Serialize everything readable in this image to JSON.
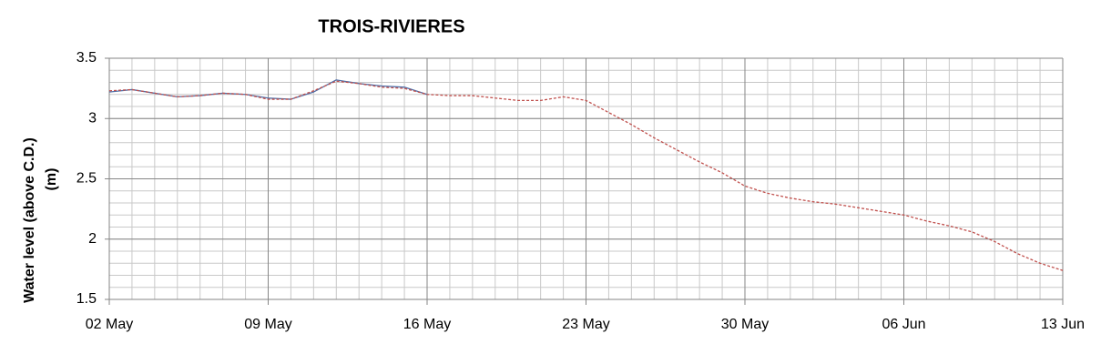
{
  "chart_data": {
    "type": "line",
    "title": "TROIS-RIVIERES",
    "y_label": [
      "Water level (above C.D.)",
      "(m)"
    ],
    "x": [
      0,
      1,
      2,
      3,
      4,
      5,
      6,
      7,
      8,
      9,
      10,
      11,
      12,
      13,
      14,
      15,
      16,
      17,
      18,
      19,
      20,
      21,
      22,
      23,
      24,
      25,
      26,
      27,
      28,
      29,
      30,
      31,
      32,
      33,
      34,
      35,
      36,
      37,
      38,
      39,
      40,
      41,
      42
    ],
    "series": [
      {
        "color": "#4f6fa8",
        "dash": false,
        "values": [
          3.22,
          3.24,
          3.21,
          3.18,
          3.19,
          3.21,
          3.2,
          3.17,
          3.16,
          3.22,
          3.32,
          3.29,
          3.27,
          3.26,
          3.2,
          null,
          null,
          null,
          null,
          null,
          null,
          null,
          null,
          null,
          null,
          null,
          null,
          null,
          null,
          null,
          null,
          null,
          null,
          null,
          null,
          null,
          null,
          null,
          null,
          null,
          null,
          null,
          null
        ]
      },
      {
        "color": "#c0504d",
        "dash": true,
        "values": [
          3.23,
          3.24,
          3.21,
          3.18,
          3.19,
          3.21,
          3.2,
          3.16,
          3.16,
          3.23,
          3.31,
          3.29,
          3.26,
          3.25,
          3.2,
          3.19,
          3.19,
          3.17,
          3.15,
          3.15,
          3.18,
          3.15,
          3.05,
          2.95,
          2.84,
          2.74,
          2.64,
          2.55,
          2.44,
          2.38,
          2.34,
          2.31,
          2.29,
          2.26,
          2.23,
          2.2,
          2.15,
          2.11,
          2.06,
          1.98,
          1.88,
          1.8,
          1.74
        ]
      }
    ],
    "xlim": [
      0,
      42
    ],
    "xticks": [
      {
        "value": 0,
        "label": "02 May"
      },
      {
        "value": 7,
        "label": "09 May"
      },
      {
        "value": 14,
        "label": "16 May"
      },
      {
        "value": 21,
        "label": "23 May"
      },
      {
        "value": 28,
        "label": "30 May"
      },
      {
        "value": 35,
        "label": "06 Jun"
      },
      {
        "value": 42,
        "label": "13 Jun"
      }
    ],
    "ylim": [
      1.5,
      3.5
    ],
    "yticks": [
      1.5,
      2,
      2.5,
      3,
      3.5
    ],
    "grid": true,
    "minor_grid": {
      "x": 1,
      "y": 0.1
    }
  }
}
